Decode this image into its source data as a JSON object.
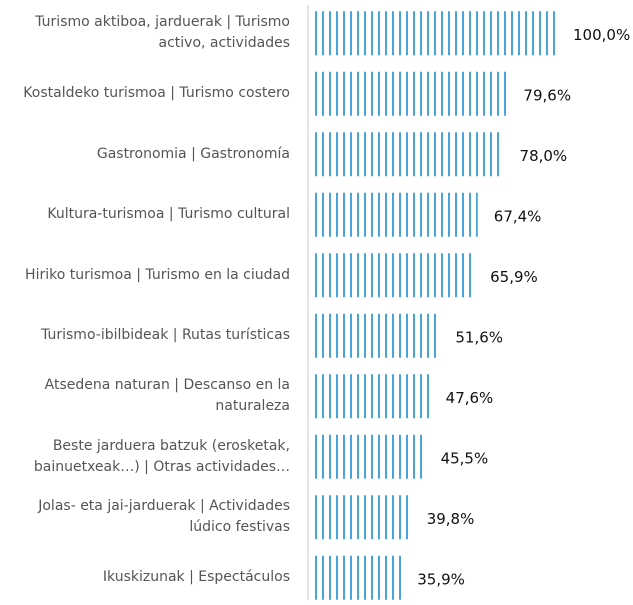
{
  "chart_data": {
    "type": "bar",
    "orientation": "horizontal",
    "categories": [
      "Turismo aktiboa, jarduerak | Turismo activo, actividades",
      "Kostaldeko turismoa | Turismo costero",
      "Gastronomia | Gastronomía",
      "Kultura-turismoa | Turismo cultural",
      "Hiriko turismoa | Turismo en la ciudad",
      "Turismo-ibilbideak | Rutas turísticas",
      "Atsedena naturan | Descanso en la naturaleza",
      "Beste jarduera batzuk (erosketak, bainuetxeak…) | Otras actividades…",
      "Jolas- eta jai-jarduerak | Actividades lúdico festivas",
      "Ikuskizunak | Espectáculos"
    ],
    "values": [
      100.0,
      79.6,
      78.0,
      67.4,
      65.9,
      51.6,
      47.6,
      45.5,
      39.8,
      35.9
    ],
    "value_labels": [
      "100,0%",
      "79,6%",
      "78,0%",
      "67,4%",
      "65,9%",
      "51,6%",
      "47,6%",
      "45,5%",
      "39,8%",
      "35,9%"
    ],
    "color": "#4aa3db",
    "xlim": [
      0,
      100
    ]
  }
}
